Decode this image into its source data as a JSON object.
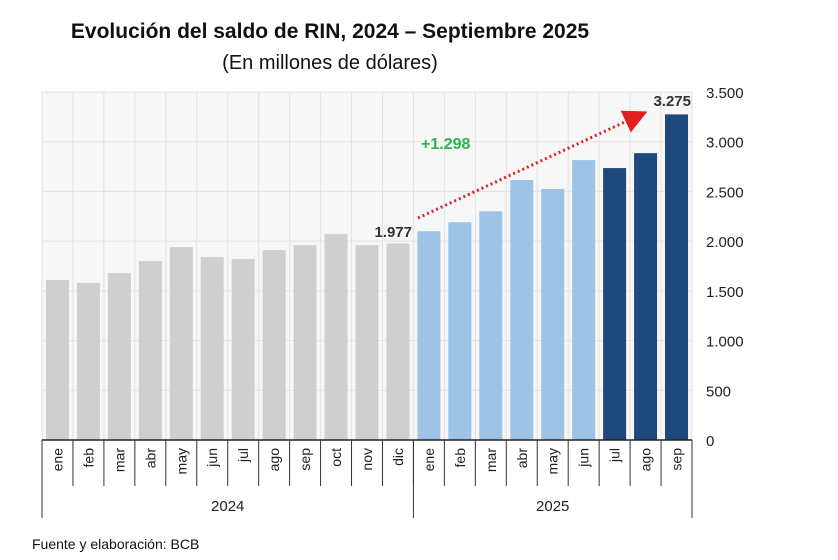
{
  "chart_data": {
    "type": "bar",
    "title": "Evolución del saldo de RIN, 2024 – Septiembre 2025",
    "subtitle": "(En millones de dólares)",
    "source": "Fuente y elaboración: BCB",
    "categories": [
      "ene",
      "feb",
      "mar",
      "abr",
      "may",
      "jun",
      "jul",
      "ago",
      "sep",
      "oct",
      "nov",
      "dic",
      "ene",
      "feb",
      "mar",
      "abr",
      "may",
      "jun",
      "jul",
      "ago",
      "sep"
    ],
    "groups": [
      {
        "label": "2024",
        "count": 12
      },
      {
        "label": "2025",
        "count": 9
      }
    ],
    "values": [
      1610,
      1580,
      1680,
      1800,
      1940,
      1840,
      1820,
      1910,
      1960,
      2070,
      1960,
      1977,
      2100,
      2190,
      2300,
      2615,
      2525,
      2815,
      2735,
      2885,
      3275
    ],
    "bar_colors": [
      "#cfcfcf",
      "#cfcfcf",
      "#cfcfcf",
      "#cfcfcf",
      "#cfcfcf",
      "#cfcfcf",
      "#cfcfcf",
      "#cfcfcf",
      "#cfcfcf",
      "#cfcfcf",
      "#cfcfcf",
      "#cfcfcf",
      "#9dc3e6",
      "#9dc3e6",
      "#9dc3e6",
      "#9dc3e6",
      "#9dc3e6",
      "#9dc3e6",
      "#1f497d",
      "#1f497d",
      "#1f497d"
    ],
    "ylim": [
      0,
      3500
    ],
    "yticks": [
      0,
      500,
      1000,
      1500,
      2000,
      2500,
      3000,
      3500
    ],
    "ytick_labels": [
      "0",
      "500",
      "1.000",
      "1.500",
      "2.000",
      "2.500",
      "3.000",
      "3.500"
    ],
    "y_axis_side": "right",
    "grid": true,
    "annotations": {
      "start_label": "1.977",
      "end_label": "3.275",
      "change_label": "+1.298",
      "change_color": "#2db34a",
      "arrow_color": "#e02020"
    }
  }
}
